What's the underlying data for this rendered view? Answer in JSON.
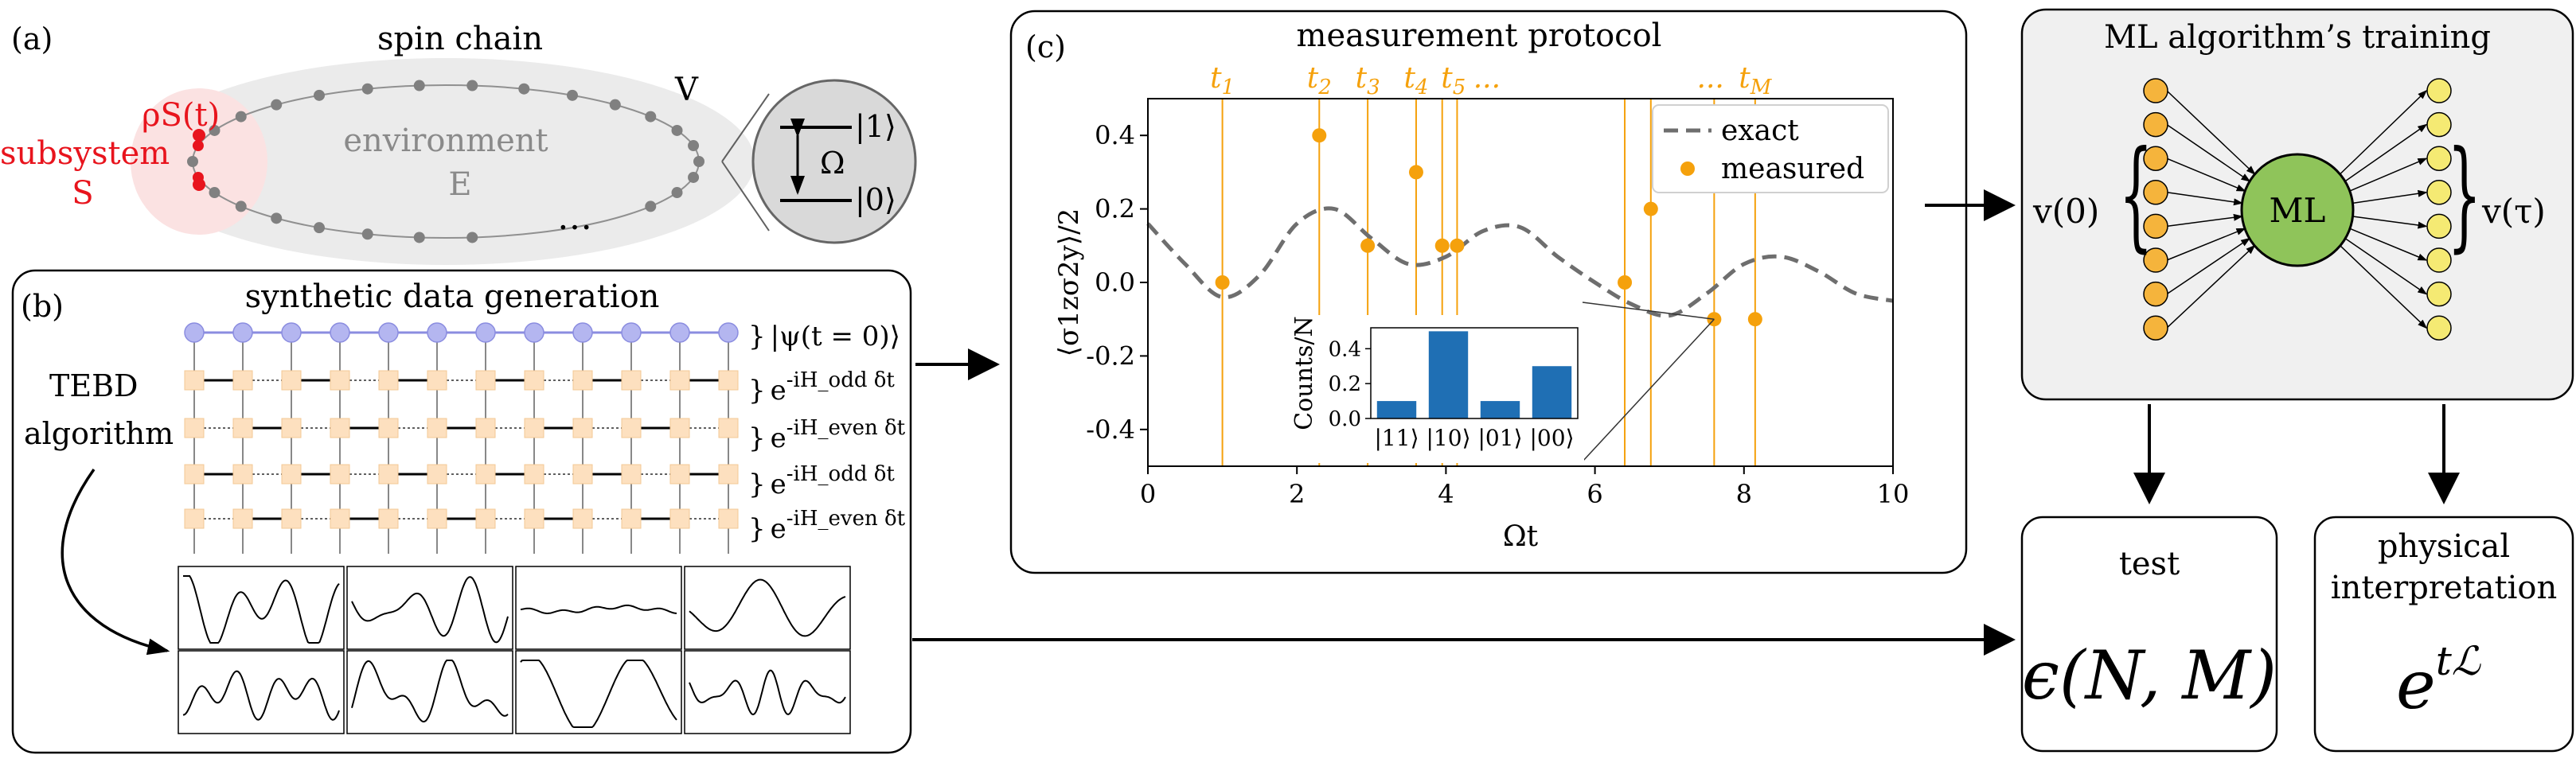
{
  "panel_a": {
    "label": "(a)",
    "title": "spin chain",
    "rho_label": "ρS(t)",
    "subsystem_label": "subsystem",
    "subsystem_symbol": "S",
    "environment_label": "environment",
    "environment_symbol": "E",
    "coupling_label": "V",
    "ellipsis": "…",
    "state_one": "|1⟩",
    "state_zero": "|0⟩",
    "omega": "Ω",
    "colors": {
      "subsystem": "#e8141d",
      "spin": "#808080",
      "ellipse": "#ebebeb"
    }
  },
  "panel_b": {
    "label": "(b)",
    "title": "synthetic data generation",
    "algorithm_line1": "TEBD",
    "algorithm_line2": "algorithm",
    "psi_label": "|ψ(t = 0)⟩",
    "gates": [
      "e^{-iH_odd δt}",
      "e^{-iH_even δt}",
      "e^{-iH_odd δt}",
      "e^{-iH_even δt}"
    ],
    "colors": {
      "mps_node": "#b4b6f0",
      "gate": "#fde0bf"
    }
  },
  "panel_c": {
    "label": "(c)",
    "title": "measurement protocol",
    "time_labels": [
      "t1",
      "t2",
      "t3",
      "t4",
      "t5",
      "...",
      "...",
      "tM"
    ],
    "inset_title": "",
    "colors": {
      "measured": "#f5a10c",
      "exact": "#6e6e6e",
      "bar": "#1f6fb4"
    }
  },
  "chart_data": [
    {
      "type": "line",
      "title": "measurement protocol",
      "xlabel": "Ωt",
      "ylabel": "⟨σ1zσ2y⟩/2",
      "xlim": [
        0,
        10
      ],
      "ylim": [
        -0.5,
        0.5
      ],
      "xticks": [
        0,
        2,
        4,
        6,
        8,
        10
      ],
      "yticks": [
        -0.4,
        -0.2,
        0.0,
        0.2,
        0.4
      ],
      "grid": false,
      "legend": "top-right",
      "series": [
        {
          "name": "exact",
          "x": [
            0,
            0.5,
            1.0,
            1.5,
            2.0,
            2.5,
            3.0,
            3.5,
            4.0,
            4.5,
            5.0,
            5.5,
            6.0,
            6.5,
            7.0,
            7.5,
            8.0,
            8.5,
            9.0,
            9.5,
            10.0
          ],
          "y": [
            0.16,
            0.05,
            -0.04,
            0.02,
            0.16,
            0.2,
            0.12,
            0.05,
            0.07,
            0.14,
            0.15,
            0.07,
            0.0,
            -0.06,
            -0.09,
            -0.03,
            0.05,
            0.07,
            0.03,
            -0.03,
            -0.05
          ]
        },
        {
          "name": "measured",
          "x": [
            1.0,
            2.3,
            2.95,
            3.6,
            3.95,
            4.15,
            6.4,
            6.75,
            7.6,
            8.15
          ],
          "y": [
            0.0,
            0.4,
            0.1,
            0.3,
            0.1,
            0.1,
            0.0,
            0.2,
            -0.1,
            -0.1
          ]
        }
      ]
    },
    {
      "type": "bar",
      "categories": [
        "|11⟩",
        "|10⟩",
        "|01⟩",
        "|00⟩"
      ],
      "values": [
        0.1,
        0.5,
        0.1,
        0.3
      ],
      "ylabel": "Counts/N",
      "ylim": [
        0,
        0.52
      ],
      "yticks": [
        0.0,
        0.2,
        0.4
      ]
    }
  ],
  "panel_ml": {
    "title": "ML algorithm’s training",
    "center_label": "ML",
    "input_label": "v(0)",
    "output_label": "v(τ)",
    "colors": {
      "input": "#f5b43c",
      "output": "#f5ea73",
      "ml": "#8fc45a",
      "panel": "#f0f0f0"
    }
  },
  "panel_test": {
    "title": "test",
    "formula": "ϵ(N, M)"
  },
  "panel_phys": {
    "title_line1": "physical",
    "title_line2": "interpretation",
    "formula_base": "e",
    "formula_exp": "tℒ"
  }
}
